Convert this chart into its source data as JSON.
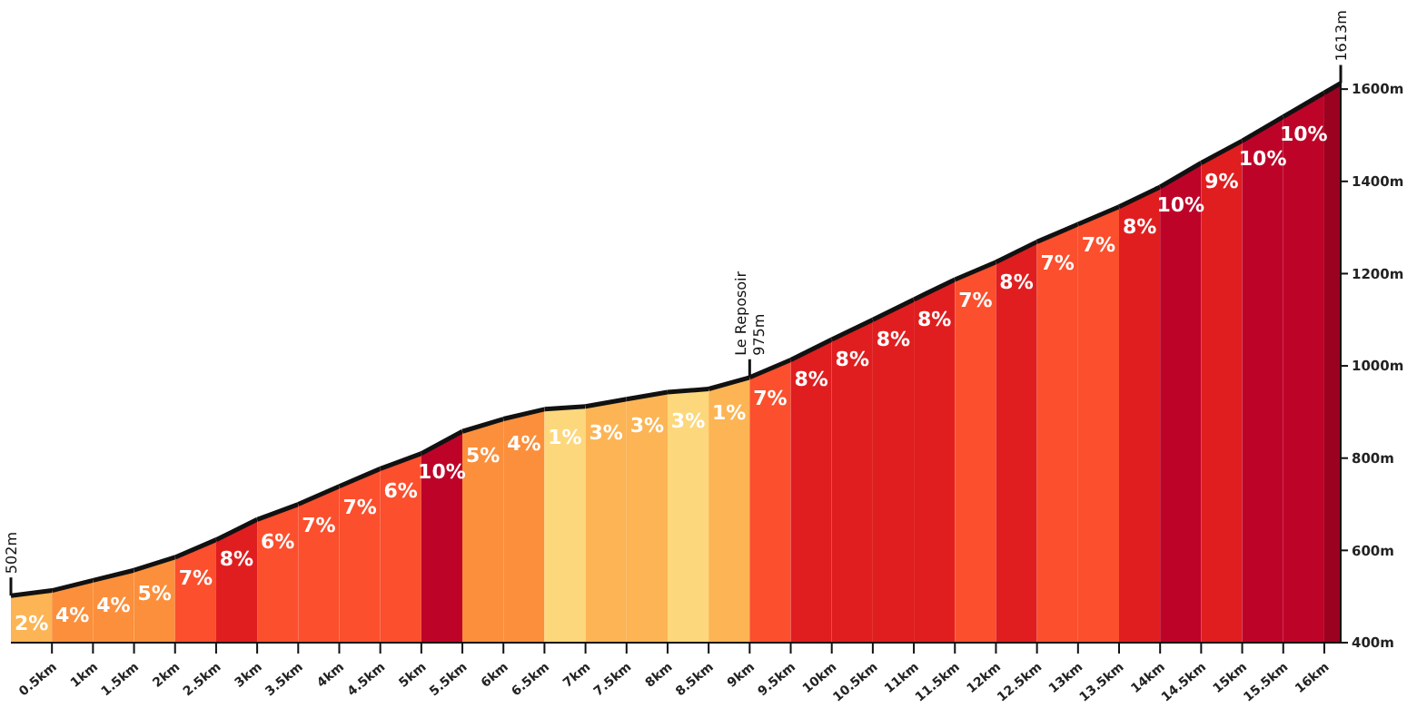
{
  "chart_data": {
    "type": "area",
    "xlim": [
      0,
      16.2
    ],
    "ylim": [
      400,
      1620
    ],
    "xticks": [
      {
        "value": 0.5,
        "label": "0.5km"
      },
      {
        "value": 1,
        "label": "1km"
      },
      {
        "value": 1.5,
        "label": "1.5km"
      },
      {
        "value": 2,
        "label": "2km"
      },
      {
        "value": 2.5,
        "label": "2.5km"
      },
      {
        "value": 3,
        "label": "3km"
      },
      {
        "value": 3.5,
        "label": "3.5km"
      },
      {
        "value": 4,
        "label": "4km"
      },
      {
        "value": 4.5,
        "label": "4.5km"
      },
      {
        "value": 5,
        "label": "5km"
      },
      {
        "value": 5.5,
        "label": "5.5km"
      },
      {
        "value": 6,
        "label": "6km"
      },
      {
        "value": 6.5,
        "label": "6.5km"
      },
      {
        "value": 7,
        "label": "7km"
      },
      {
        "value": 7.5,
        "label": "7.5km"
      },
      {
        "value": 8,
        "label": "8km"
      },
      {
        "value": 8.5,
        "label": "8.5km"
      },
      {
        "value": 9,
        "label": "9km"
      },
      {
        "value": 9.5,
        "label": "9.5km"
      },
      {
        "value": 10,
        "label": "10km"
      },
      {
        "value": 10.5,
        "label": "10.5km"
      },
      {
        "value": 11,
        "label": "11km"
      },
      {
        "value": 11.5,
        "label": "11.5km"
      },
      {
        "value": 12,
        "label": "12km"
      },
      {
        "value": 12.5,
        "label": "12.5km"
      },
      {
        "value": 13,
        "label": "13km"
      },
      {
        "value": 13.5,
        "label": "13.5km"
      },
      {
        "value": 14,
        "label": "14km"
      },
      {
        "value": 14.5,
        "label": "14.5km"
      },
      {
        "value": 15,
        "label": "15km"
      },
      {
        "value": 15.5,
        "label": "15.5km"
      },
      {
        "value": 16,
        "label": "16km"
      }
    ],
    "yticks": [
      {
        "value": 400,
        "label": "400m"
      },
      {
        "value": 600,
        "label": "600m"
      },
      {
        "value": 800,
        "label": "800m"
      },
      {
        "value": 1000,
        "label": "1000m"
      },
      {
        "value": 1200,
        "label": "1200m"
      },
      {
        "value": 1400,
        "label": "1400m"
      },
      {
        "value": 1600,
        "label": "1600m"
      }
    ],
    "grid": false,
    "series": [
      {
        "type": "area",
        "color": "#fcb454",
        "x": [
          0,
          0.5
        ],
        "values": [
          502,
          513
        ]
      },
      {
        "type": "area",
        "color": "#fb8f3c",
        "x": [
          0.5,
          1
        ],
        "values": [
          513,
          535
        ]
      },
      {
        "type": "area",
        "color": "#fb8f3c",
        "x": [
          1,
          1.5
        ],
        "values": [
          535,
          557
        ]
      },
      {
        "type": "area",
        "color": "#fb8f3c",
        "x": [
          1.5,
          2
        ],
        "values": [
          557,
          585
        ]
      },
      {
        "type": "area",
        "color": "#fb4f2d",
        "x": [
          2,
          2.5
        ],
        "values": [
          585,
          623
        ]
      },
      {
        "type": "area",
        "color": "#e01e1f",
        "x": [
          2.5,
          3
        ],
        "values": [
          623,
          667
        ]
      },
      {
        "type": "area",
        "color": "#fb4f2d",
        "x": [
          3,
          3.5
        ],
        "values": [
          667,
          700
        ]
      },
      {
        "type": "area",
        "color": "#fb4f2d",
        "x": [
          3.5,
          4
        ],
        "values": [
          700,
          739
        ]
      },
      {
        "type": "area",
        "color": "#fb4f2d",
        "x": [
          4,
          4.5
        ],
        "values": [
          739,
          777
        ]
      },
      {
        "type": "area",
        "color": "#fb4f2d",
        "x": [
          4.5,
          5
        ],
        "values": [
          777,
          810
        ]
      },
      {
        "type": "area",
        "color": "#be0329",
        "x": [
          5,
          5.5
        ],
        "values": [
          810,
          858
        ]
      },
      {
        "type": "area",
        "color": "#fb8f3c",
        "x": [
          5.5,
          6
        ],
        "values": [
          858,
          885
        ]
      },
      {
        "type": "area",
        "color": "#fb8f3c",
        "x": [
          6,
          6.5
        ],
        "values": [
          885,
          906
        ]
      },
      {
        "type": "area",
        "color": "#fdd77b",
        "x": [
          6.5,
          7
        ],
        "values": [
          906,
          912
        ]
      },
      {
        "type": "area",
        "color": "#fcb454",
        "x": [
          7,
          7.5
        ],
        "values": [
          912,
          928
        ]
      },
      {
        "type": "area",
        "color": "#fcb454",
        "x": [
          7.5,
          8
        ],
        "values": [
          928,
          943
        ]
      },
      {
        "type": "area",
        "color": "#fdd77b",
        "x": [
          8,
          8.5
        ],
        "values": [
          943,
          950
        ]
      },
      {
        "type": "area",
        "color": "#fcb454",
        "x": [
          8.5,
          9
        ],
        "values": [
          950,
          975
        ]
      },
      {
        "type": "area",
        "color": "#fb4f2d",
        "x": [
          9,
          9.5
        ],
        "values": [
          975,
          1013
        ]
      },
      {
        "type": "area",
        "color": "#e01e1f",
        "x": [
          9.5,
          10
        ],
        "values": [
          1013,
          1057
        ]
      },
      {
        "type": "area",
        "color": "#e01e1f",
        "x": [
          10,
          10.5
        ],
        "values": [
          1057,
          1100
        ]
      },
      {
        "type": "area",
        "color": "#e01e1f",
        "x": [
          10.5,
          11
        ],
        "values": [
          1100,
          1144
        ]
      },
      {
        "type": "area",
        "color": "#e01e1f",
        "x": [
          11,
          11.5
        ],
        "values": [
          1144,
          1187
        ]
      },
      {
        "type": "area",
        "color": "#fb4f2d",
        "x": [
          11.5,
          12
        ],
        "values": [
          1187,
          1225
        ]
      },
      {
        "type": "area",
        "color": "#e01e1f",
        "x": [
          12,
          12.5
        ],
        "values": [
          1225,
          1269
        ]
      },
      {
        "type": "area",
        "color": "#fb4f2d",
        "x": [
          12.5,
          13
        ],
        "values": [
          1269,
          1307
        ]
      },
      {
        "type": "area",
        "color": "#fb4f2d",
        "x": [
          13,
          13.5
        ],
        "values": [
          1307,
          1345
        ]
      },
      {
        "type": "area",
        "color": "#e01e1f",
        "x": [
          13.5,
          14
        ],
        "values": [
          1345,
          1388
        ]
      },
      {
        "type": "area",
        "color": "#be0329",
        "x": [
          14,
          14.5
        ],
        "values": [
          1388,
          1440
        ]
      },
      {
        "type": "area",
        "color": "#e01e1f",
        "x": [
          14.5,
          15
        ],
        "values": [
          1440,
          1488
        ]
      },
      {
        "type": "area",
        "color": "#be0329",
        "x": [
          15,
          15.5
        ],
        "values": [
          1488,
          1540
        ]
      },
      {
        "type": "area",
        "color": "#be0329",
        "x": [
          15.5,
          16
        ],
        "values": [
          1540,
          1592
        ]
      },
      {
        "type": "area",
        "color": "#9a0220",
        "x": [
          16,
          16.2
        ],
        "values": [
          1592,
          1613
        ]
      }
    ],
    "annotations": [
      {
        "text": "502m",
        "x": 0,
        "y": 502
      },
      {
        "text": "Le Reposoir 975m",
        "x": 9,
        "y": 975
      },
      {
        "text": "1613m",
        "x": 16.2,
        "y": 1613
      },
      {
        "text": "2%",
        "x": 0.25,
        "y": 507
      },
      {
        "text": "4%",
        "x": 0.75,
        "y": 524
      },
      {
        "text": "4%",
        "x": 1.25,
        "y": 546
      },
      {
        "text": "5%",
        "x": 1.75,
        "y": 571
      },
      {
        "text": "7%",
        "x": 2.25,
        "y": 604
      },
      {
        "text": "8%",
        "x": 2.75,
        "y": 645
      },
      {
        "text": "6%",
        "x": 3.25,
        "y": 683
      },
      {
        "text": "7%",
        "x": 3.75,
        "y": 719
      },
      {
        "text": "7%",
        "x": 4.25,
        "y": 758
      },
      {
        "text": "6%",
        "x": 4.75,
        "y": 793
      },
      {
        "text": "10%",
        "x": 5.25,
        "y": 834
      },
      {
        "text": "5%",
        "x": 5.75,
        "y": 871
      },
      {
        "text": "4%",
        "x": 6.25,
        "y": 895
      },
      {
        "text": "1%",
        "x": 6.75,
        "y": 909
      },
      {
        "text": "3%",
        "x": 7.25,
        "y": 920
      },
      {
        "text": "3%",
        "x": 7.75,
        "y": 935
      },
      {
        "text": "3%",
        "x": 8.25,
        "y": 946
      },
      {
        "text": "1%",
        "x": 8.75,
        "y": 962
      },
      {
        "text": "7%",
        "x": 9.25,
        "y": 994
      },
      {
        "text": "8%",
        "x": 9.75,
        "y": 1035
      },
      {
        "text": "8%",
        "x": 10.25,
        "y": 1078
      },
      {
        "text": "8%",
        "x": 10.75,
        "y": 1122
      },
      {
        "text": "8%",
        "x": 11.25,
        "y": 1165
      },
      {
        "text": "7%",
        "x": 11.75,
        "y": 1206
      },
      {
        "text": "8%",
        "x": 12.25,
        "y": 1247
      },
      {
        "text": "7%",
        "x": 12.75,
        "y": 1288
      },
      {
        "text": "7%",
        "x": 13.25,
        "y": 1326
      },
      {
        "text": "8%",
        "x": 13.75,
        "y": 1366
      },
      {
        "text": "10%",
        "x": 14.25,
        "y": 1414
      },
      {
        "text": "9%",
        "x": 14.75,
        "y": 1464
      },
      {
        "text": "10%",
        "x": 15.25,
        "y": 1514
      },
      {
        "text": "10%",
        "x": 15.75,
        "y": 1566
      }
    ]
  }
}
